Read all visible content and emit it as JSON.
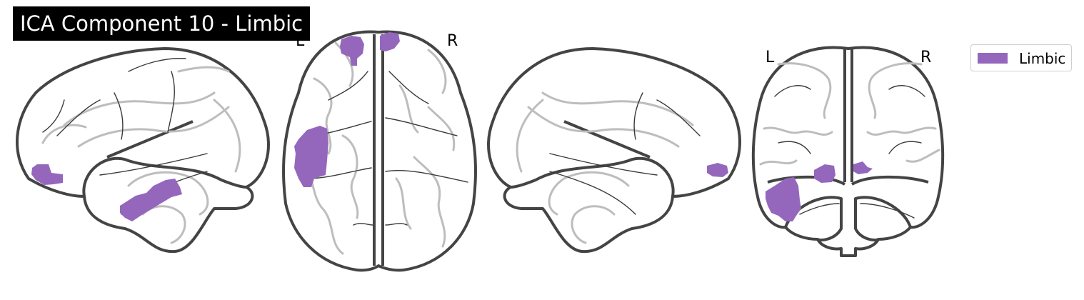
{
  "figure": {
    "title": "ICA Component 10 - Limbic",
    "axial_labels": {
      "left": "L",
      "right": "R"
    },
    "coronal_labels": {
      "left": "L",
      "right": "R"
    },
    "legend": {
      "items": [
        {
          "label": "Limbic",
          "color": "#9467bd"
        }
      ]
    },
    "overlay_color": "#9467bd",
    "views": [
      "sagittal-left",
      "axial",
      "sagittal-right",
      "coronal"
    ]
  }
}
